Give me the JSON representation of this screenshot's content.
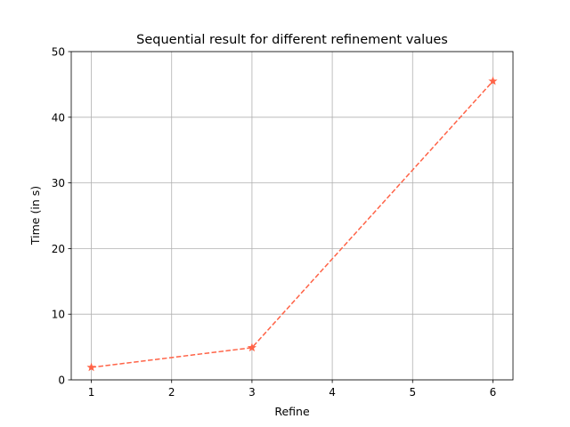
{
  "chart_data": {
    "type": "line",
    "title": "Sequential result for different refinement values",
    "xlabel": "Refine",
    "ylabel": "Time (in s)",
    "x": [
      1,
      3,
      6
    ],
    "series": [
      {
        "values": [
          1.9,
          4.9,
          45.5
        ]
      }
    ],
    "xlim": [
      0.75,
      6.25
    ],
    "ylim": [
      0,
      50
    ],
    "xticks": [
      1,
      2,
      3,
      4,
      5,
      6
    ],
    "yticks": [
      0,
      10,
      20,
      30,
      40,
      50
    ],
    "grid": true,
    "line_style": "dashed",
    "marker": "star",
    "color": "#FF6347"
  }
}
